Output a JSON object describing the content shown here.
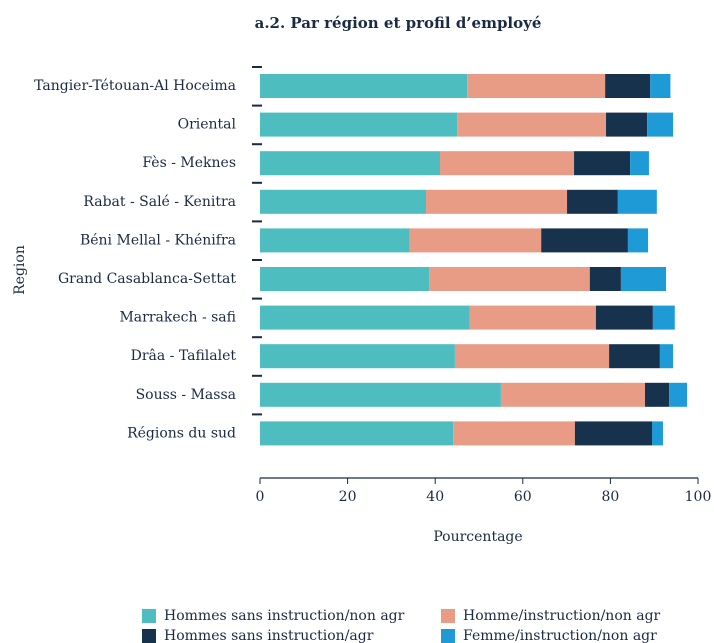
{
  "chart_data": {
    "type": "stacked-barh",
    "title": "a.2. Par région et profil d’employé",
    "xlabel": "Pourcentage",
    "ylabel": "Region",
    "categories": [
      "Tangier-Tétouan-Al Hoceima",
      "Oriental",
      "Fès - Meknes",
      "Rabat - Salé - Kenitra",
      "Béni Mellal - Khénifra",
      "Grand  Casablanca-Settat",
      "Marrakech - safi",
      "Drâa - Tafilalet",
      "Souss - Massa",
      "Régions du sud"
    ],
    "series": [
      {
        "name": "Hommes sans instruction/non agr",
        "color": "#4dbdbf",
        "values": [
          47.3,
          45,
          41.1,
          37.9,
          34.2,
          38.6,
          47.9,
          44.5,
          55,
          44.1
        ]
      },
      {
        "name": "Homme/instruction/non agr",
        "color": "#e89b85",
        "values": [
          31.5,
          34,
          30.6,
          32.2,
          30,
          36.7,
          28.8,
          35.2,
          32.9,
          27.8
        ]
      },
      {
        "name": "Hommes sans instruction/agr",
        "color": "#17324d",
        "values": [
          10.3,
          9.4,
          12.8,
          11.6,
          19.8,
          7.1,
          13,
          11.6,
          5.5,
          17.6
        ]
      },
      {
        "name": "Femme/instruction/non agr",
        "color": "#1e9ad6",
        "values": [
          4.6,
          5.9,
          4.3,
          8.9,
          4.6,
          10.3,
          5,
          3,
          4.1,
          2.5
        ]
      }
    ],
    "xlim": [
      0,
      100
    ],
    "xticks": [
      0,
      20,
      40,
      60,
      80,
      100
    ]
  }
}
